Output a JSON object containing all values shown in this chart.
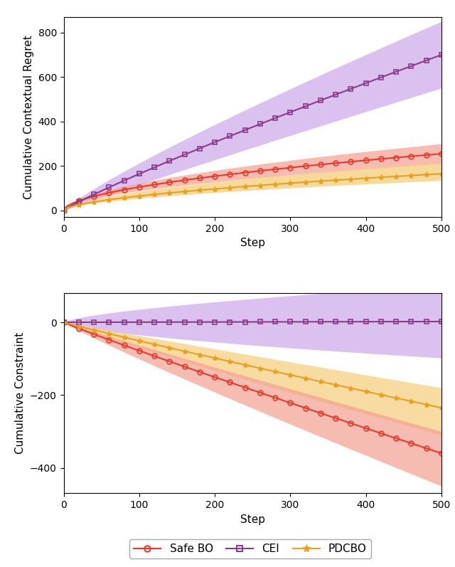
{
  "title1": "Cumulative Contextual Regret",
  "title2": "Cumulative Constraint",
  "xlabel": "Step",
  "xlim": [
    0,
    500
  ],
  "x_ticks": [
    0,
    100,
    200,
    300,
    400,
    500
  ],
  "regret_ylim": [
    -30,
    870
  ],
  "regret_yticks": [
    0,
    200,
    400,
    600,
    800
  ],
  "constraint_ylim": [
    -470,
    80
  ],
  "constraint_yticks": [
    -400,
    -200,
    0
  ],
  "marker_every": 20,
  "safe_bo_color": "#e8392a",
  "cei_color": "#8B3A8B",
  "pdcbo_color": "#E8A020",
  "safe_bo_fill": "#f5a090",
  "cei_fill": "#c9a0e8",
  "pdcbo_fill": "#f5d080",
  "legend_labels": [
    "Safe BO",
    "CEI",
    "PDCBO"
  ],
  "figsize": [
    6.4,
    7.97
  ],
  "dpi": 100
}
